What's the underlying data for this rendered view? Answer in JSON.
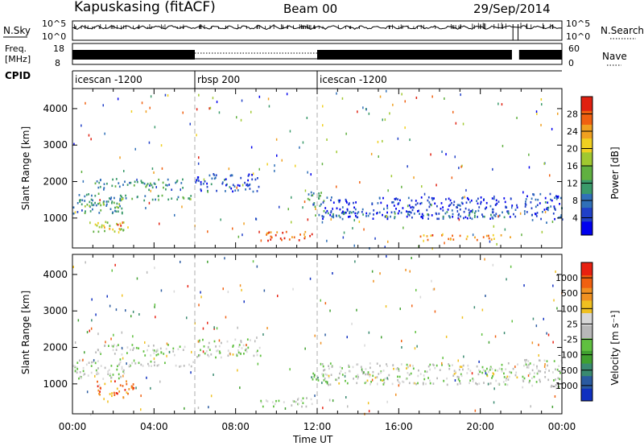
{
  "header": {
    "station": "Kapuskasing (fitACF)",
    "beam": "Beam 00",
    "date": "29/Sep/2014"
  },
  "top_panel": {
    "nsky_label": "N.Sky",
    "nsky_ticks": [
      "10^5",
      "10^0"
    ],
    "nsearch_label": "N.Search",
    "nsearch_ticks": [
      "10^5",
      "10^0"
    ],
    "freq_label_1": "Freq.",
    "freq_label_2": "[MHz]",
    "freq_ticks": [
      "18",
      "8"
    ],
    "nave_label": "Nave",
    "nave_ticks": [
      "60",
      "0"
    ],
    "cpid_label": "CPID"
  },
  "cpid_segments": [
    {
      "label": "icescan -1200",
      "start_hour": 0,
      "end_hour": 6
    },
    {
      "label": "rbsp 200",
      "start_hour": 6,
      "end_hour": 12
    },
    {
      "label": "icescan -1200",
      "start_hour": 12,
      "end_hour": 24
    }
  ],
  "chart_data": [
    {
      "type": "heatmap",
      "parameter": "Power",
      "ylabel": "Slant Range [km]",
      "xlabel": "Time UT",
      "ylim": [
        180,
        4550
      ],
      "xlim": [
        0,
        24
      ],
      "yticks": [
        "1000",
        "2000",
        "3000",
        "4000"
      ],
      "xticks": [
        "00:00",
        "04:00",
        "08:00",
        "12:00",
        "16:00",
        "20:00",
        "00:00"
      ],
      "colorbar_label": "Power [dB]",
      "colorbar_ticks": [
        "4",
        "8",
        "12",
        "16",
        "20",
        "24",
        "28"
      ],
      "colorbar_colors": [
        "#0000ee",
        "#2040c8",
        "#3070b8",
        "#3a9a6a",
        "#60b040",
        "#a0c830",
        "#f0d020",
        "#f0a020",
        "#f06010",
        "#e02010"
      ],
      "bands": [
        {
          "t0": 0.0,
          "t1": 2.6,
          "r0": 1150,
          "r1": 1700,
          "level": 0.25
        },
        {
          "t0": 0.2,
          "t1": 2.4,
          "r0": 1300,
          "r1": 1500,
          "level": 0.5
        },
        {
          "t0": 1.0,
          "t1": 3.0,
          "r0": 650,
          "r1": 950,
          "level": 0.55
        },
        {
          "t0": 1.5,
          "t1": 2.4,
          "r0": 700,
          "r1": 850,
          "level": 0.85
        },
        {
          "t0": 1.0,
          "t1": 5.5,
          "r0": 1800,
          "r1": 2100,
          "level": 0.3
        },
        {
          "t0": 2.0,
          "t1": 6.0,
          "r0": 1500,
          "r1": 1650,
          "level": 0.4
        },
        {
          "t0": 6.0,
          "t1": 9.2,
          "r0": 1750,
          "r1": 2250,
          "level": 0.15
        },
        {
          "t0": 9.2,
          "t1": 11.8,
          "r0": 400,
          "r1": 650,
          "level": 0.9
        },
        {
          "t0": 11.5,
          "t1": 12.3,
          "r0": 1100,
          "r1": 1800,
          "level": 0.35
        },
        {
          "t0": 12.2,
          "t1": 21.8,
          "r0": 1000,
          "r1": 1600,
          "level": 0.1
        },
        {
          "t0": 12.2,
          "t1": 21.8,
          "r0": 1050,
          "r1": 1200,
          "level": 0.25
        },
        {
          "t0": 17.0,
          "t1": 21.6,
          "r0": 420,
          "r1": 560,
          "level": 0.8
        },
        {
          "t0": 22.0,
          "t1": 24.0,
          "r0": 900,
          "r1": 1700,
          "level": 0.15
        }
      ]
    },
    {
      "type": "heatmap",
      "parameter": "Velocity",
      "ylabel": "Slant Range [km]",
      "xlabel": "Time UT",
      "ylim": [
        180,
        4550
      ],
      "xlim": [
        0,
        24
      ],
      "yticks": [
        "1000",
        "2000",
        "3000",
        "4000"
      ],
      "xticks": [
        "00:00",
        "04:00",
        "08:00",
        "12:00",
        "16:00",
        "20:00",
        "00:00"
      ],
      "colorbar_label": "Velocity [m s⁻¹]",
      "colorbar_ticks": [
        "1000",
        "500",
        "100",
        "25",
        "-25",
        "-100",
        "-500",
        "-1000"
      ],
      "colorbar_colors": [
        "#1030c0",
        "#2a5aa0",
        "#3a8a70",
        "#40a030",
        "#60c040",
        "#b8b8b8",
        "#d8d8d8",
        "#f0c020",
        "#f09020",
        "#f06010",
        "#e82010"
      ],
      "bands": [
        {
          "t0": 0.0,
          "t1": 2.6,
          "r0": 1150,
          "r1": 1700,
          "level": 0.5
        },
        {
          "t0": 1.0,
          "t1": 3.0,
          "r0": 650,
          "r1": 1100,
          "level": 0.85
        },
        {
          "t0": 1.0,
          "t1": 5.5,
          "r0": 1800,
          "r1": 2100,
          "level": 0.5
        },
        {
          "t0": 2.0,
          "t1": 6.0,
          "r0": 1500,
          "r1": 1650,
          "level": 0.5
        },
        {
          "t0": 6.0,
          "t1": 9.2,
          "r0": 1750,
          "r1": 2250,
          "level": 0.52
        },
        {
          "t0": 9.2,
          "t1": 11.8,
          "r0": 400,
          "r1": 650,
          "level": 0.5
        },
        {
          "t0": 11.5,
          "t1": 12.3,
          "r0": 1100,
          "r1": 1400,
          "level": 0.3
        },
        {
          "t0": 12.2,
          "t1": 21.8,
          "r0": 1000,
          "r1": 1600,
          "level": 0.52
        },
        {
          "t0": 22.0,
          "t1": 24.0,
          "r0": 900,
          "r1": 1700,
          "level": 0.5
        }
      ]
    }
  ]
}
